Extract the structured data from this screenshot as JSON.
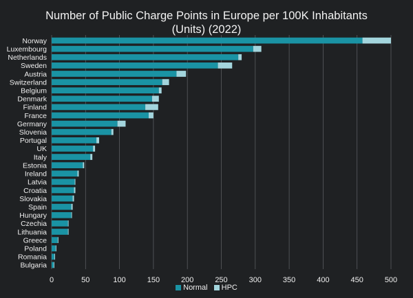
{
  "title_line1": "Number of Public Charge Points in Europe per 100K Inhabitants",
  "title_line2": "(Units) (2022)",
  "colors": {
    "background": "#1f2123",
    "normal": "#1a93a4",
    "hpc": "#a3d5dd",
    "gridline": "#5a5d60",
    "text": "#f0f0f0"
  },
  "legend": {
    "normal": "Normal",
    "hpc": "HPC"
  },
  "chart_data": {
    "type": "bar",
    "orientation": "horizontal",
    "stacked": true,
    "title": "Number of Public Charge Points in Europe per 100K Inhabitants (Units) (2022)",
    "xlim": [
      0,
      500
    ],
    "xticks": [
      0,
      50,
      100,
      150,
      200,
      250,
      300,
      350,
      400,
      450,
      500
    ],
    "grid": "vertical",
    "legend_position": "bottom",
    "categories": [
      "Norway",
      "Luxembourg",
      "Netherlands",
      "Sweden",
      "Austria",
      "Switzerland",
      "Belgium",
      "Denmark",
      "Finland",
      "France",
      "Germany",
      "Slovenia",
      "Portugal",
      "UK",
      "Italy",
      "Estonia",
      "Ireland",
      "Latvia",
      "Croatia",
      "Slovakia",
      "Spain",
      "Hungary",
      "Czechia",
      "Lithuania",
      "Greece",
      "Poland",
      "Romania",
      "Bulgaria"
    ],
    "series": [
      {
        "name": "Normal",
        "color": "#1a93a4",
        "values": [
          458,
          297,
          275,
          245,
          184,
          163,
          158,
          148,
          138,
          143,
          97,
          88,
          66,
          61,
          57,
          46,
          38,
          34,
          33,
          31,
          29,
          29,
          24,
          24,
          9,
          6,
          4,
          3
        ]
      },
      {
        "name": "HPC",
        "color": "#a3d5dd",
        "values": [
          42,
          12,
          5,
          21,
          14,
          10,
          4,
          10,
          19,
          7,
          12,
          3,
          4,
          3,
          3,
          2,
          2,
          1,
          2,
          2,
          2,
          1,
          1,
          1,
          1,
          1,
          1,
          1
        ]
      }
    ]
  }
}
